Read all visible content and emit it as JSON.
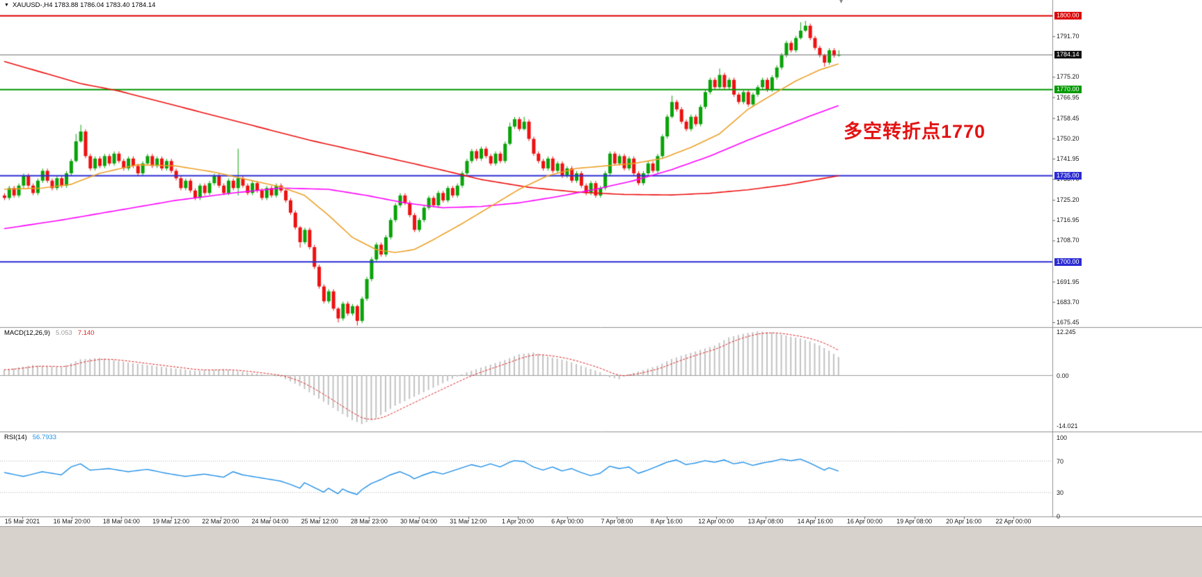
{
  "icons": {
    "dropdown": "▼",
    "shift_marker": "▾"
  },
  "header": {
    "symbol_text": "XAUUSD-,H4 1783.88 1786.04 1783.40 1784.14"
  },
  "annotation": {
    "text": "多空转折点1770",
    "color": "#e31212"
  },
  "price_axis": {
    "ticks": [
      [
        1791.7,
        "1791.70"
      ],
      [
        1775.2,
        "1775.20"
      ],
      [
        1766.95,
        "1766.95"
      ],
      [
        1758.45,
        "1758.45"
      ],
      [
        1750.2,
        "1750.20"
      ],
      [
        1741.95,
        "1741.95"
      ],
      [
        1733.7,
        "1733.70"
      ],
      [
        1725.2,
        "1725.20"
      ],
      [
        1716.95,
        "1716.95"
      ],
      [
        1708.7,
        "1708.70"
      ],
      [
        1691.95,
        "1691.95"
      ],
      [
        1683.7,
        "1683.70"
      ],
      [
        1675.45,
        "1675.45"
      ]
    ],
    "badges": [
      {
        "price": 1800.0,
        "label": "1800.00",
        "bg": "#dd0000"
      },
      {
        "price": 1784.14,
        "label": "1784.14",
        "bg": "#111111"
      },
      {
        "price": 1770.0,
        "label": "1770.00",
        "bg": "#009900"
      },
      {
        "price": 1735.0,
        "label": "1735.00",
        "bg": "#2b2bd4"
      },
      {
        "price": 1700.0,
        "label": "1700.00",
        "bg": "#2b2bd4"
      }
    ]
  },
  "time_axis": {
    "labels": [
      "15 Mar 2021",
      "16 Mar 20:00",
      "18 Mar 04:00",
      "19 Mar 12:00",
      "22 Mar 20:00",
      "24 Mar 04:00",
      "25 Mar 12:00",
      "28 Mar 23:00",
      "30 Mar 04:00",
      "31 Mar 12:00",
      "1 Apr 20:00",
      "6 Apr 00:00",
      "7 Apr 08:00",
      "8 Apr 16:00",
      "12 Apr 00:00",
      "13 Apr 08:00",
      "14 Apr 16:00",
      "16 Apr 00:00",
      "19 Apr 08:00",
      "20 Apr 16:00",
      "22 Apr 00:00"
    ]
  },
  "chart_data": {
    "type": "candlestick",
    "symbol": "XAUUSD-",
    "timeframe": "H4",
    "ohlc": {
      "open": "1783.88",
      "high": "1786.04",
      "low": "1783.40",
      "close": "1784.14"
    },
    "price_axis_range": [
      1675.45,
      1800.0
    ],
    "up_color": "#09a309",
    "down_color": "#ee1111",
    "first_open": 1727,
    "default_wick": 0.9,
    "closes": [
      1726,
      1730,
      1727,
      1731,
      1735,
      1731,
      1728,
      1733,
      1737,
      1733,
      1730,
      1734,
      1731,
      1736,
      1741,
      1749,
      1753,
      1743,
      1738,
      1742,
      1739,
      1743,
      1740,
      1744,
      1741,
      1738,
      1742,
      1739,
      1736,
      1740,
      1743,
      1739,
      1742,
      1738,
      1741,
      1737,
      1734,
      1730,
      1733,
      1729,
      1726,
      1731,
      1728,
      1732,
      1735,
      1731,
      1728,
      1733,
      1730,
      1734,
      1731,
      1728,
      1732,
      1729,
      1726,
      1730,
      1727,
      1731,
      1729,
      1725,
      1720,
      1714,
      1708,
      1713,
      1706,
      1698,
      1690,
      1684,
      1688,
      1681,
      1677,
      1683,
      1679,
      1682,
      1676,
      1685,
      1693,
      1701,
      1707,
      1703,
      1710,
      1717,
      1723,
      1727,
      1724,
      1719,
      1713,
      1717,
      1722,
      1726,
      1723,
      1728,
      1725,
      1730,
      1727,
      1731,
      1736,
      1741,
      1745,
      1742,
      1746,
      1743,
      1740,
      1744,
      1741,
      1748,
      1755,
      1758,
      1754,
      1757,
      1750,
      1744,
      1741,
      1738,
      1742,
      1737,
      1740,
      1735,
      1738,
      1733,
      1736,
      1731,
      1728,
      1732,
      1727,
      1730,
      1736,
      1744,
      1740,
      1743,
      1738,
      1742,
      1736,
      1732,
      1736,
      1740,
      1737,
      1743,
      1751,
      1759,
      1765,
      1762,
      1757,
      1754,
      1759,
      1756,
      1763,
      1769,
      1774,
      1771,
      1776,
      1771,
      1774,
      1768,
      1765,
      1769,
      1764,
      1768,
      1771,
      1774,
      1770,
      1775,
      1779,
      1784,
      1789,
      1786,
      1791,
      1794,
      1796,
      1791,
      1787,
      1784,
      1781,
      1786,
      1783.9,
      1784.14
    ],
    "wick_overrides": {
      "15": [
        3,
        0.6
      ],
      "16": [
        2.7,
        0.6
      ],
      "49": [
        12,
        3
      ],
      "62": [
        0.6,
        2.2
      ],
      "70": [
        0.6,
        1.6
      ],
      "74": [
        0.6,
        1.9
      ],
      "106": [
        1.6,
        0.6
      ],
      "109": [
        2,
        0.6
      ],
      "140": [
        2.6,
        0.6
      ],
      "150": [
        2.6,
        0.6
      ],
      "167": [
        3.4,
        0.6
      ],
      "168": [
        2,
        0.6
      ],
      "172": [
        0.6,
        1.6
      ],
      "175": [
        1.9,
        0.5
      ]
    },
    "levels": [
      {
        "price": 1800.0,
        "color": "#dd0000",
        "width": 2
      },
      {
        "price": 1770.0,
        "color": "#009900",
        "width": 2
      },
      {
        "price": 1735.0,
        "color": "#2b2bd4",
        "width": 2
      },
      {
        "price": 1700.0,
        "color": "#2b2bd4",
        "width": 2
      },
      {
        "price": 1784.14,
        "color": "#6b6b6b",
        "width": 1
      }
    ],
    "moving_averages": [
      {
        "name": "slow-ma-red",
        "color": "#ee1111",
        "width": 1.6,
        "points": [
          [
            0,
            1781.5
          ],
          [
            8,
            1777
          ],
          [
            16,
            1772.5
          ],
          [
            24,
            1769.5
          ],
          [
            32,
            1765.5
          ],
          [
            40,
            1761.5
          ],
          [
            48,
            1757.5
          ],
          [
            56,
            1753.5
          ],
          [
            64,
            1749.5
          ],
          [
            72,
            1746
          ],
          [
            80,
            1742.5
          ],
          [
            88,
            1739
          ],
          [
            93,
            1736.8
          ],
          [
            100,
            1733.5
          ],
          [
            110,
            1730.3
          ],
          [
            120,
            1728.4
          ],
          [
            130,
            1727.4
          ],
          [
            140,
            1727.2
          ],
          [
            148,
            1727.9
          ],
          [
            156,
            1729.3
          ],
          [
            164,
            1731.3
          ],
          [
            170,
            1733.3
          ],
          [
            175,
            1735
          ]
        ]
      },
      {
        "name": "mid-ma-magenta",
        "color": "#ff00ff",
        "width": 1.6,
        "points": [
          [
            0,
            1713.5
          ],
          [
            12,
            1717
          ],
          [
            24,
            1721
          ],
          [
            36,
            1725
          ],
          [
            48,
            1728
          ],
          [
            58,
            1730
          ],
          [
            68,
            1729.5
          ],
          [
            76,
            1727
          ],
          [
            84,
            1724
          ],
          [
            92,
            1722
          ],
          [
            100,
            1722.5
          ],
          [
            108,
            1724
          ],
          [
            116,
            1726.5
          ],
          [
            124,
            1729.5
          ],
          [
            132,
            1733
          ],
          [
            140,
            1737.5
          ],
          [
            148,
            1743
          ],
          [
            156,
            1749.5
          ],
          [
            164,
            1755.5
          ],
          [
            170,
            1760
          ],
          [
            175,
            1763.5
          ]
        ]
      },
      {
        "name": "fast-ma-orange",
        "color": "#eda128",
        "width": 1.6,
        "points": [
          [
            0,
            1729.5
          ],
          [
            8,
            1730
          ],
          [
            14,
            1731.5
          ],
          [
            20,
            1736
          ],
          [
            28,
            1739.5
          ],
          [
            36,
            1739
          ],
          [
            44,
            1736.5
          ],
          [
            52,
            1733
          ],
          [
            58,
            1730.5
          ],
          [
            63,
            1727
          ],
          [
            68,
            1719
          ],
          [
            73,
            1710
          ],
          [
            78,
            1705
          ],
          [
            82,
            1703.8
          ],
          [
            86,
            1705
          ],
          [
            90,
            1709
          ],
          [
            96,
            1715.5
          ],
          [
            102,
            1722.5
          ],
          [
            108,
            1729.5
          ],
          [
            114,
            1735
          ],
          [
            120,
            1738
          ],
          [
            126,
            1739
          ],
          [
            132,
            1740
          ],
          [
            138,
            1742
          ],
          [
            144,
            1746.5
          ],
          [
            150,
            1752
          ],
          [
            156,
            1762
          ],
          [
            162,
            1769
          ],
          [
            166,
            1773.5
          ],
          [
            171,
            1778
          ],
          [
            175,
            1780.5
          ]
        ]
      }
    ],
    "macd": {
      "label": "MACD(12,26,9)",
      "value": "5.053",
      "signal": "7.140",
      "value_color": "#9a9a9a",
      "histogram_color": "#c2c2c2",
      "signal_color": "#e02020",
      "signal_alpha": 0.28,
      "scale_labels": [
        [
          12.245,
          "12.245"
        ],
        [
          0,
          "0.00"
        ],
        [
          -14.021,
          "-14.021"
        ]
      ],
      "points": [
        [
          0,
          1.5
        ],
        [
          6,
          2.8
        ],
        [
          12,
          2.2
        ],
        [
          16,
          4.4
        ],
        [
          20,
          4.8
        ],
        [
          26,
          3.5
        ],
        [
          32,
          2.5
        ],
        [
          40,
          1.2
        ],
        [
          46,
          1.6
        ],
        [
          52,
          0.6
        ],
        [
          58,
          -0.5
        ],
        [
          62,
          -3
        ],
        [
          66,
          -6.5
        ],
        [
          70,
          -10
        ],
        [
          73,
          -12.5
        ],
        [
          75,
          -13.6
        ],
        [
          78,
          -12
        ],
        [
          82,
          -8.5
        ],
        [
          86,
          -6
        ],
        [
          90,
          -3.5
        ],
        [
          94,
          -1
        ],
        [
          97,
          0.8
        ],
        [
          101,
          2.5
        ],
        [
          105,
          4.2
        ],
        [
          108,
          5.8
        ],
        [
          111,
          6.3
        ],
        [
          114,
          5.2
        ],
        [
          118,
          4
        ],
        [
          122,
          2.2
        ],
        [
          125,
          0.8
        ],
        [
          127,
          -0.6
        ],
        [
          129,
          -1.1
        ],
        [
          131,
          0.3
        ],
        [
          134,
          1.4
        ],
        [
          137,
          2.6
        ],
        [
          140,
          4.5
        ],
        [
          143,
          5.8
        ],
        [
          146,
          7
        ],
        [
          149,
          8.2
        ],
        [
          152,
          10.5
        ],
        [
          155,
          11.5
        ],
        [
          158,
          12.2
        ],
        [
          161,
          11.9
        ],
        [
          163,
          11.3
        ],
        [
          165,
          10.7
        ],
        [
          167,
          10.2
        ],
        [
          169,
          9.4
        ],
        [
          171,
          8.3
        ],
        [
          173,
          6.8
        ],
        [
          175,
          5.053
        ]
      ]
    },
    "rsi": {
      "label": "RSI(14)",
      "value": "56.7933",
      "line_color": "#2090e8",
      "levels": [
        70,
        30
      ],
      "scale_labels": [
        [
          100,
          "100"
        ],
        [
          70,
          "70"
        ],
        [
          30,
          "30"
        ],
        [
          0,
          "0"
        ]
      ],
      "points": [
        [
          0,
          55
        ],
        [
          4,
          50
        ],
        [
          8,
          56
        ],
        [
          12,
          52
        ],
        [
          14,
          62
        ],
        [
          16,
          66
        ],
        [
          18,
          58
        ],
        [
          22,
          60
        ],
        [
          26,
          56
        ],
        [
          30,
          59
        ],
        [
          34,
          54
        ],
        [
          38,
          50
        ],
        [
          42,
          53
        ],
        [
          46,
          49
        ],
        [
          48,
          56
        ],
        [
          50,
          52
        ],
        [
          54,
          48
        ],
        [
          58,
          44
        ],
        [
          60,
          40
        ],
        [
          62,
          35
        ],
        [
          63,
          42
        ],
        [
          65,
          36
        ],
        [
          67,
          30
        ],
        [
          68,
          35
        ],
        [
          70,
          28
        ],
        [
          71,
          34
        ],
        [
          72,
          31
        ],
        [
          74,
          27
        ],
        [
          75,
          33
        ],
        [
          77,
          41
        ],
        [
          79,
          46
        ],
        [
          81,
          52
        ],
        [
          83,
          56
        ],
        [
          85,
          51
        ],
        [
          86,
          47
        ],
        [
          88,
          52
        ],
        [
          90,
          56
        ],
        [
          92,
          53
        ],
        [
          94,
          57
        ],
        [
          96,
          61
        ],
        [
          98,
          65
        ],
        [
          100,
          62
        ],
        [
          102,
          66
        ],
        [
          104,
          62
        ],
        [
          106,
          68
        ],
        [
          107,
          70
        ],
        [
          109,
          69
        ],
        [
          111,
          62
        ],
        [
          113,
          58
        ],
        [
          115,
          62
        ],
        [
          117,
          57
        ],
        [
          119,
          60
        ],
        [
          121,
          55
        ],
        [
          123,
          51
        ],
        [
          125,
          54
        ],
        [
          127,
          63
        ],
        [
          129,
          60
        ],
        [
          131,
          62
        ],
        [
          133,
          54
        ],
        [
          135,
          58
        ],
        [
          137,
          63
        ],
        [
          139,
          68
        ],
        [
          141,
          71
        ],
        [
          143,
          65
        ],
        [
          145,
          67
        ],
        [
          147,
          70
        ],
        [
          149,
          68
        ],
        [
          151,
          71
        ],
        [
          153,
          66
        ],
        [
          155,
          68
        ],
        [
          157,
          64
        ],
        [
          159,
          67
        ],
        [
          161,
          69
        ],
        [
          163,
          72
        ],
        [
          165,
          70
        ],
        [
          167,
          72
        ],
        [
          169,
          67
        ],
        [
          171,
          61
        ],
        [
          172,
          58
        ],
        [
          173,
          61
        ],
        [
          175,
          56.79
        ]
      ]
    }
  }
}
